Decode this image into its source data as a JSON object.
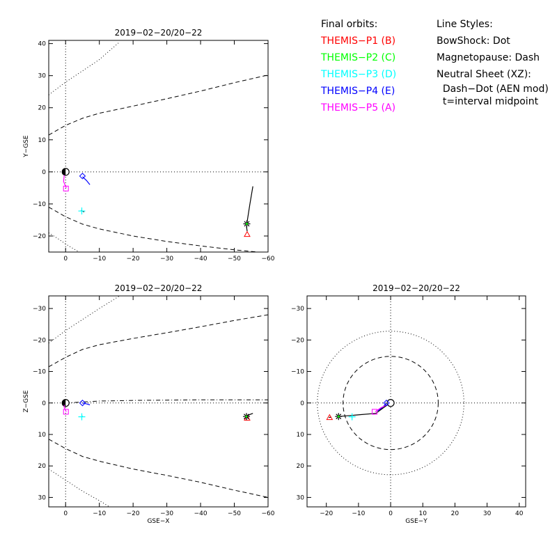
{
  "legend": {
    "orbits_heading": "Final orbits:",
    "probes": [
      {
        "label": "THEMIS−P1 (B)",
        "color": "#ff0000"
      },
      {
        "label": "THEMIS−P2 (C)",
        "color": "#00ff00"
      },
      {
        "label": "THEMIS−P3 (D)",
        "color": "#00ffff"
      },
      {
        "label": "THEMIS−P4 (E)",
        "color": "#0000ff"
      },
      {
        "label": "THEMIS−P5 (A)",
        "color": "#ff00ff"
      }
    ],
    "styles_heading": "Line Styles:",
    "styles": [
      "BowShock: Dot",
      "Magnetopause: Dash",
      "Neutral Sheet (XZ):",
      "  Dash−Dot (AEN mod)",
      "  t=interval midpoint"
    ]
  },
  "chart_data": [
    {
      "type": "line",
      "title": "2019−02−20/20−22",
      "xlabel": "",
      "ylabel": "Y−GSE",
      "xlim": [
        5,
        -60
      ],
      "ylim": [
        41,
        -25
      ],
      "xticks": [
        0,
        -10,
        -20,
        -30,
        -40,
        -50,
        -60
      ],
      "xtick_labels": [
        "0",
        "−10",
        "−20",
        "−30",
        "−40",
        "−50",
        "−60"
      ],
      "yticks": [
        -20,
        -10,
        0,
        10,
        20,
        30,
        40
      ],
      "ytick_labels": [
        "−20",
        "−10",
        "0",
        "10",
        "20",
        "30",
        "40"
      ],
      "curves": [
        {
          "name": "Magnetopause",
          "style": "dash",
          "points": [
            [
              5,
              -11
            ],
            [
              0,
              -14
            ],
            [
              -5,
              -16.3
            ],
            [
              -10,
              -17.8
            ],
            [
              -20,
              -20
            ],
            [
              -30,
              -21.7
            ],
            [
              -40,
              -23.1
            ],
            [
              -50,
              -24.3
            ],
            [
              -60,
              -25.3
            ]
          ]
        },
        {
          "name": "Magnetopause",
          "style": "dash",
          "points": [
            [
              5,
              11.5
            ],
            [
              0,
              14.5
            ],
            [
              -5,
              16.7
            ],
            [
              -10,
              18.3
            ],
            [
              -20,
              20.5
            ],
            [
              -30,
              22.8
            ],
            [
              -40,
              25.2
            ],
            [
              -50,
              27.8
            ],
            [
              -60,
              30.2
            ]
          ]
        },
        {
          "name": "BowShock",
          "style": "dot",
          "points": [
            [
              5,
              -19
            ],
            [
              2,
              -21
            ],
            [
              0,
              -22.5
            ],
            [
              -4,
              -25
            ]
          ]
        },
        {
          "name": "BowShock",
          "style": "dot",
          "points": [
            [
              5,
              24
            ],
            [
              0,
              28
            ],
            [
              -5,
              31.5
            ],
            [
              -10,
              35
            ],
            [
              -16,
              40.5
            ]
          ]
        }
      ],
      "orbits": [
        {
          "probe": "P1",
          "color": "#ff0000",
          "points": [
            [
              -53.8,
              -18.5
            ],
            [
              -53.6,
              -17
            ]
          ]
        },
        {
          "probe": "P2",
          "color": "#00ff00",
          "points": [
            [
              -53.7,
              -16.2
            ],
            [
              -54.6,
              -10.2
            ],
            [
              -55.5,
              -4.5
            ]
          ]
        },
        {
          "probe": "P3",
          "color": "#00ffff",
          "points": [
            [
              -4.6,
              -12
            ],
            [
              -5.5,
              -12.5
            ]
          ]
        },
        {
          "probe": "P4",
          "color": "#0000ff",
          "points": [
            [
              -5,
              -1.5
            ],
            [
              -6.2,
              -2.7
            ],
            [
              -7.2,
              -4
            ]
          ]
        },
        {
          "probe": "P5",
          "color": "#ff00ff",
          "points": [
            [
              -0.2,
              -5
            ],
            [
              0.6,
              -3
            ],
            [
              0.4,
              -1
            ]
          ]
        }
      ],
      "markers": [
        {
          "probe": "P1",
          "shape": "triangle",
          "color": "#ff0000",
          "x": -53.8,
          "y": -19.5
        },
        {
          "probe": "P2",
          "shape": "asterisk",
          "color": "#00ff00",
          "x": -53.7,
          "y": -16.2
        },
        {
          "probe": "P3",
          "shape": "plus",
          "color": "#00ffff",
          "x": -4.8,
          "y": -12.2
        },
        {
          "probe": "P4",
          "shape": "diamond",
          "color": "#0000ff",
          "x": -5,
          "y": -1.3
        },
        {
          "probe": "P5",
          "shape": "square",
          "color": "#ff00ff",
          "x": -0.1,
          "y": -5.2
        }
      ],
      "grid": "dotted lines at 0"
    },
    {
      "type": "line",
      "title": "2019−02−20/20−22",
      "xlabel": "GSE−X",
      "ylabel": "Z−GSE",
      "xlim": [
        5,
        -60
      ],
      "ylim": [
        -34,
        33
      ],
      "xticks": [
        0,
        -10,
        -20,
        -30,
        -40,
        -50,
        -60
      ],
      "xtick_labels": [
        "0",
        "−10",
        "−20",
        "−30",
        "−40",
        "−50",
        "−60"
      ],
      "yticks": [
        30,
        20,
        10,
        0,
        -10,
        -20,
        -30
      ],
      "ytick_labels": [
        "30",
        "20",
        "10",
        "0",
        "−10",
        "−20",
        "−30"
      ],
      "curves": [
        {
          "name": "Magnetopause",
          "style": "dash",
          "points": [
            [
              5,
              11.5
            ],
            [
              0,
              14.5
            ],
            [
              -5,
              17
            ],
            [
              -10,
              18.5
            ],
            [
              -20,
              21
            ],
            [
              -30,
              23
            ],
            [
              -40,
              25.2
            ],
            [
              -50,
              27.7
            ],
            [
              -60,
              30
            ]
          ]
        },
        {
          "name": "Magnetopause",
          "style": "dash",
          "points": [
            [
              5,
              -11.5
            ],
            [
              0,
              -14.5
            ],
            [
              -5,
              -17
            ],
            [
              -10,
              -18.5
            ],
            [
              -20,
              -20.5
            ],
            [
              -30,
              -22.3
            ],
            [
              -40,
              -24.2
            ],
            [
              -50,
              -26.2
            ],
            [
              -60,
              -28
            ]
          ]
        },
        {
          "name": "BowShock",
          "style": "dot",
          "points": [
            [
              5,
              21
            ],
            [
              0,
              24.5
            ],
            [
              -5,
              28
            ],
            [
              -10,
              31
            ],
            [
              -13,
              33
            ]
          ]
        },
        {
          "name": "BowShock",
          "style": "dot",
          "points": [
            [
              5,
              -19
            ],
            [
              0,
              -23
            ],
            [
              -5,
              -26.5
            ],
            [
              -10,
              -30
            ],
            [
              -16,
              -34
            ]
          ]
        },
        {
          "name": "Neutral Sheet",
          "style": "dashdot",
          "points": [
            [
              0,
              0
            ],
            [
              -5,
              -0.3
            ],
            [
              -10,
              -0.6
            ],
            [
              -20,
              -0.8
            ],
            [
              -30,
              -0.9
            ],
            [
              -40,
              -1
            ],
            [
              -50,
              -1
            ],
            [
              -60,
              -1
            ]
          ]
        }
      ],
      "orbits": [
        {
          "probe": "P1",
          "color": "#ff0000",
          "points": [
            [
              -53.8,
              4.8
            ],
            [
              -54,
              4.3
            ]
          ]
        },
        {
          "probe": "P2",
          "color": "#00ff00",
          "points": [
            [
              -53.6,
              4.3
            ],
            [
              -54.5,
              3.7
            ],
            [
              -55.5,
              3.3
            ]
          ]
        },
        {
          "probe": "P3",
          "color": "#00ffff",
          "points": [
            [
              -4.8,
              4.3
            ],
            [
              -5,
              4.2
            ]
          ]
        },
        {
          "probe": "P4",
          "color": "#0000ff",
          "points": [
            [
              -5,
              0
            ],
            [
              -6.2,
              0.3
            ],
            [
              -7.2,
              0.6
            ]
          ]
        },
        {
          "probe": "P5",
          "color": "#ff00ff",
          "points": [
            [
              -0.2,
              2.8
            ],
            [
              0.4,
              1.5
            ],
            [
              0.4,
              0.6
            ]
          ]
        }
      ],
      "markers": [
        {
          "probe": "P1",
          "shape": "triangle",
          "color": "#ff0000",
          "x": -53.8,
          "y": 4.8
        },
        {
          "probe": "P2",
          "shape": "asterisk",
          "color": "#00ff00",
          "x": -53.6,
          "y": 4.3
        },
        {
          "probe": "P3",
          "shape": "plus",
          "color": "#00ffff",
          "x": -4.8,
          "y": 4.4
        },
        {
          "probe": "P4",
          "shape": "diamond",
          "color": "#0000ff",
          "x": -5,
          "y": 0
        },
        {
          "probe": "P5",
          "shape": "square",
          "color": "#ff00ff",
          "x": -0.1,
          "y": 2.8
        }
      ],
      "grid": "dotted lines at 0"
    },
    {
      "type": "line",
      "title": "2019−02−20/20−22",
      "xlabel": "GSE−Y",
      "ylabel": "",
      "xlim": [
        -26,
        42
      ],
      "ylim": [
        -34,
        33
      ],
      "xticks": [
        -20,
        -10,
        0,
        10,
        20,
        30,
        40
      ],
      "xtick_labels": [
        "−20",
        "−10",
        "0",
        "10",
        "20",
        "30",
        "40"
      ],
      "yticks": [
        30,
        20,
        10,
        0,
        -10,
        -20,
        -30
      ],
      "ytick_labels": [
        "30",
        "20",
        "10",
        "0",
        "−10",
        "−20",
        "−30"
      ],
      "circles": [
        {
          "name": "Magnetopause",
          "style": "dash",
          "radius": 14.8
        },
        {
          "name": "BowShock",
          "style": "dot",
          "radius": 22.8
        }
      ],
      "orbits": [
        {
          "probe": "P1",
          "color": "#ff0000",
          "points": [
            [
              -19.2,
              4.6
            ],
            [
              -18.5,
              4.5
            ]
          ]
        },
        {
          "probe": "P2",
          "color": "#00ff00",
          "points": [
            [
              -16.2,
              4.3
            ],
            [
              -10.2,
              3.8
            ],
            [
              -4.6,
              3.3
            ]
          ]
        },
        {
          "probe": "P3",
          "color": "#00ffff",
          "points": [
            [
              -12,
              4.3
            ],
            [
              -12.3,
              4.4
            ]
          ]
        },
        {
          "probe": "P4",
          "color": "#0000ff",
          "points": [
            [
              -4,
              2.5
            ],
            [
              -2.7,
              1.6
            ],
            [
              -1.3,
              0.1
            ]
          ]
        },
        {
          "probe": "P5",
          "color": "#ff00ff",
          "points": [
            [
              -4.8,
              2.8
            ],
            [
              -3,
              1.5
            ],
            [
              -1,
              0.6
            ]
          ]
        }
      ],
      "markers": [
        {
          "probe": "P1",
          "shape": "triangle",
          "color": "#ff0000",
          "x": -19,
          "y": 4.6
        },
        {
          "probe": "P2",
          "shape": "asterisk",
          "color": "#00ff00",
          "x": -16.2,
          "y": 4.3
        },
        {
          "probe": "P3",
          "shape": "plus",
          "color": "#00ffff",
          "x": -12,
          "y": 4.4
        },
        {
          "probe": "P4",
          "shape": "diamond",
          "color": "#0000ff",
          "x": -1.3,
          "y": 0
        },
        {
          "probe": "P5",
          "shape": "square",
          "color": "#ff00ff",
          "x": -5,
          "y": 2.8
        }
      ],
      "grid": "dotted lines at 0"
    }
  ]
}
